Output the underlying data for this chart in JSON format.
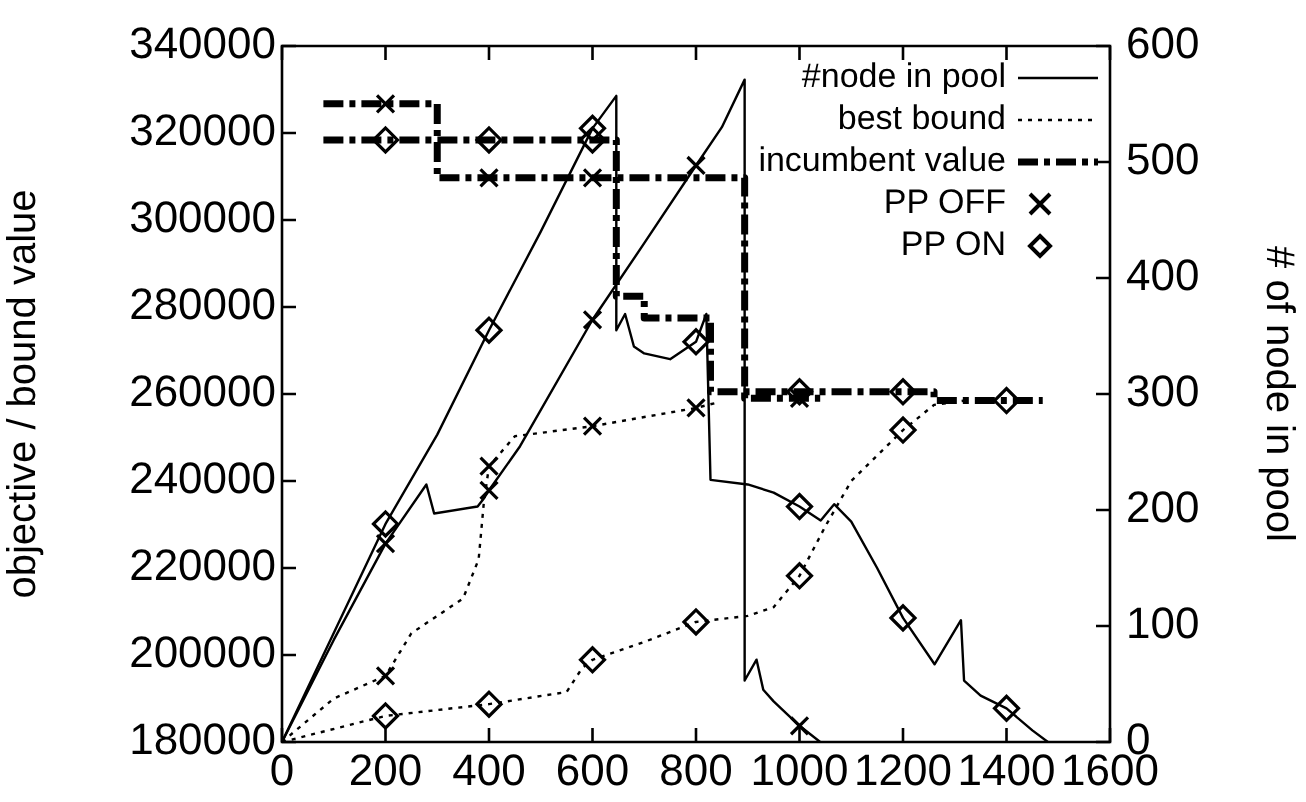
{
  "chart_data": {
    "type": "line",
    "ylabel": "objective / bound value",
    "y2label": "# of node in pool",
    "xlim": [
      0,
      1600
    ],
    "xticks": [
      0,
      200,
      400,
      600,
      800,
      1000,
      1200,
      1400,
      1600
    ],
    "ylim": [
      180000,
      340000
    ],
    "yticks": [
      180000,
      200000,
      220000,
      240000,
      260000,
      280000,
      300000,
      320000,
      340000
    ],
    "y2lim": [
      0,
      600
    ],
    "y2ticks": [
      0,
      100,
      200,
      300,
      400,
      500,
      600
    ],
    "grid": false,
    "legend": "top right",
    "series": [
      {
        "name": "#node in pool",
        "type": "line",
        "axis": "y2",
        "line_style": "solid",
        "color": "#000000",
        "x": [
          0,
          100,
          200,
          279,
          294,
          378,
          390,
          400,
          460,
          600,
          700,
          800,
          850,
          894,
          894,
          917,
          930,
          950,
          1000,
          1040
        ],
        "values": [
          0,
          88,
          171,
          222,
          197,
          203,
          210,
          217,
          255,
          364,
          430,
          497,
          530,
          571,
          53,
          71,
          45,
          35,
          14,
          0
        ]
      },
      {
        "type": "line",
        "axis": "y2",
        "line_style": "solid",
        "color": "#000000",
        "x": [
          0,
          200,
          300,
          400,
          500,
          600,
          646,
          646,
          663,
          680,
          700,
          750,
          800,
          820,
          828,
          900,
          950,
          1000,
          1041,
          1067,
          1100,
          1150,
          1200,
          1261,
          1312,
          1318,
          1350,
          1400,
          1450,
          1480
        ],
        "values": [
          0,
          188,
          265,
          355,
          440,
          529,
          557,
          355,
          369,
          341,
          335,
          330,
          345,
          369,
          226,
          222,
          215,
          203,
          191,
          205,
          190,
          150,
          107,
          67,
          105,
          53,
          40,
          29,
          10,
          0
        ]
      },
      {
        "name": "best bound",
        "type": "line",
        "line_style": "dotted",
        "color": "#000000",
        "x": [
          0,
          100,
          200,
          250,
          300,
          350,
          380,
          390,
          400,
          450,
          600,
          800,
          840
        ],
        "values": [
          180000,
          190000,
          195200,
          205000,
          209000,
          213000,
          222000,
          235000,
          243400,
          250300,
          252600,
          256800,
          258000
        ]
      },
      {
        "type": "line",
        "line_style": "dotted",
        "color": "#000000",
        "x": [
          0,
          50,
          200,
          400,
          550,
          580,
          600,
          700,
          800,
          900,
          950,
          1000,
          1050,
          1100,
          1200,
          1260,
          1320
        ],
        "values": [
          180000,
          181500,
          186000,
          188700,
          191500,
          197000,
          198900,
          203000,
          207600,
          209000,
          211000,
          218200,
          229600,
          240000,
          251700,
          257500,
          258500
        ]
      },
      {
        "name": "incumbent value",
        "type": "step",
        "line_style": "dashed",
        "color": "#000000",
        "x": [
          80,
          300,
          894,
          1040
        ],
        "values": [
          326700,
          309700,
          259000,
          259000
        ]
      },
      {
        "type": "step",
        "line_style": "dashed",
        "color": "#000000",
        "x": [
          80,
          646,
          700,
          828,
          1260,
          1470
        ],
        "values": [
          318400,
          282500,
          277500,
          260500,
          258500,
          258500
        ]
      },
      {
        "name": "PP OFF",
        "type": "scatter",
        "marker": "cross",
        "color": "#000000",
        "x": [
          200,
          400,
          600,
          800,
          200,
          400,
          600,
          1000
        ],
        "values": [
          195200,
          243400,
          252600,
          256800,
          326700,
          309700,
          309700,
          259000
        ]
      },
      {
        "type": "scatter",
        "axis": "y2",
        "marker": "cross",
        "color": "#000000",
        "x": [
          200,
          400,
          600,
          800,
          1000
        ],
        "values": [
          171,
          217,
          364,
          497,
          14
        ]
      },
      {
        "name": "PP ON",
        "type": "scatter",
        "marker": "diamond",
        "color": "#000000",
        "x": [
          200,
          400,
          600,
          800,
          1000,
          1200,
          200,
          400,
          600,
          1000,
          1200,
          1400
        ],
        "values": [
          186000,
          188700,
          198900,
          207600,
          218200,
          251700,
          318400,
          318400,
          318400,
          260500,
          260500,
          258500
        ]
      },
      {
        "type": "scatter",
        "axis": "y2",
        "marker": "diamond",
        "color": "#000000",
        "x": [
          200,
          400,
          600,
          800,
          1000,
          1200,
          1400
        ],
        "values": [
          188,
          355,
          529,
          345,
          203,
          107,
          29
        ]
      }
    ]
  }
}
